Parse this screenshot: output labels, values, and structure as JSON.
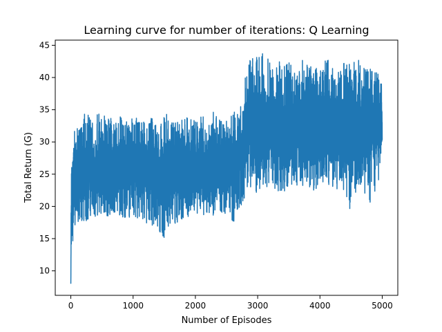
{
  "chart_data": {
    "type": "line",
    "title": "Learning curve for number of iterations: Q Learning",
    "xlabel": "Number of Episodes",
    "ylabel": "Total Return (G)",
    "xlim": [
      -250,
      5250
    ],
    "ylim": [
      6.2,
      45.8
    ],
    "x_ticks": [
      0,
      1000,
      2000,
      3000,
      4000,
      5000
    ],
    "y_ticks": [
      10,
      15,
      20,
      25,
      30,
      35,
      40,
      45
    ],
    "grid": false,
    "legend": "none",
    "series": [
      {
        "color": "#1f77b4",
        "x": [
          0,
          5,
          10,
          15,
          20,
          30,
          50,
          80,
          120,
          200,
          300,
          400,
          500,
          600,
          700,
          800,
          900,
          1000,
          1100,
          1200,
          1300,
          1400,
          1500,
          1600,
          1700,
          1800,
          1900,
          2000,
          2100,
          2200,
          2300,
          2400,
          2500,
          2600,
          2700,
          2770,
          2790,
          2800,
          2850,
          2900,
          3000,
          3100,
          3200,
          3300,
          3400,
          3500,
          3600,
          3700,
          3800,
          3900,
          4000,
          4100,
          4200,
          4300,
          4400,
          4500,
          4600,
          4700,
          4800,
          4900,
          5000
        ],
        "lower": [
          8.0,
          12.0,
          13.0,
          14.0,
          15.0,
          14.5,
          15.5,
          16.5,
          17.0,
          17.5,
          18.0,
          18.5,
          18.5,
          18.5,
          19.0,
          18.5,
          18.0,
          18.5,
          18.0,
          17.5,
          17.0,
          16.5,
          15.0,
          17.5,
          17.0,
          18.0,
          18.5,
          19.0,
          18.5,
          19.0,
          18.0,
          18.5,
          19.0,
          17.0,
          19.0,
          20.0,
          21.0,
          22.0,
          22.5,
          22.5,
          22.0,
          23.0,
          23.0,
          22.5,
          22.0,
          23.0,
          23.5,
          22.5,
          23.0,
          22.5,
          23.0,
          23.5,
          23.0,
          22.0,
          22.5,
          18.5,
          23.5,
          22.5,
          19.5,
          22.5,
          24.5
        ],
        "upper": [
          25.0,
          25.5,
          26.0,
          27.0,
          28.0,
          31.0,
          31.5,
          32.0,
          33.0,
          34.8,
          34.0,
          34.5,
          34.8,
          34.0,
          33.5,
          34.0,
          33.5,
          34.0,
          33.5,
          33.0,
          34.0,
          32.5,
          34.5,
          34.0,
          33.0,
          33.5,
          34.5,
          33.5,
          34.5,
          32.5,
          35.0,
          33.5,
          34.5,
          35.0,
          35.5,
          36.0,
          40.0,
          40.0,
          42.5,
          43.0,
          43.5,
          43.8,
          42.5,
          43.5,
          42.0,
          42.5,
          41.0,
          43.0,
          42.0,
          41.5,
          42.0,
          43.0,
          42.0,
          41.0,
          42.5,
          42.0,
          43.5,
          42.0,
          42.5,
          42.0,
          42.3
        ],
        "mean": [
          8.0,
          18.0,
          20.0,
          21.0,
          22.0,
          23.0,
          24.0,
          24.5,
          25.0,
          25.5,
          26.0,
          26.0,
          26.5,
          26.0,
          26.0,
          26.5,
          26.0,
          26.0,
          26.0,
          25.5,
          25.5,
          25.5,
          25.0,
          26.0,
          25.5,
          25.5,
          26.0,
          26.0,
          26.0,
          26.0,
          26.0,
          26.0,
          26.5,
          26.5,
          27.0,
          27.5,
          31.0,
          32.0,
          32.0,
          32.0,
          32.0,
          32.5,
          32.0,
          32.0,
          32.0,
          32.0,
          32.0,
          32.0,
          32.0,
          32.0,
          32.0,
          32.0,
          32.0,
          32.0,
          32.0,
          32.0,
          32.0,
          32.0,
          32.0,
          32.0,
          33.0
        ]
      }
    ]
  }
}
